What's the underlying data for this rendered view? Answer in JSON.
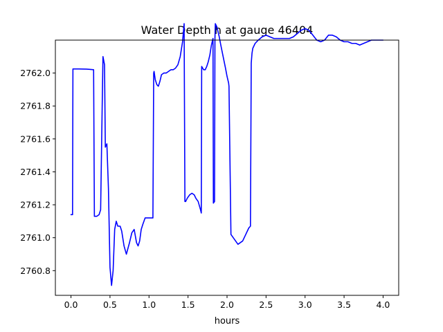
{
  "chart_data": {
    "type": "line",
    "title": "Water Depth h at gauge 46404",
    "xlabel": "hours",
    "ylabel": "",
    "xlim": [
      -0.2,
      4.2
    ],
    "ylim": [
      2760.65,
      2762.2
    ],
    "xticks": [
      0.0,
      0.5,
      1.0,
      1.5,
      2.0,
      2.5,
      3.0,
      3.5,
      4.0
    ],
    "xtick_labels": [
      "0.0",
      "0.5",
      "1.0",
      "1.5",
      "2.0",
      "2.5",
      "3.0",
      "3.5",
      "4.0"
    ],
    "yticks": [
      2760.8,
      2761.0,
      2761.2,
      2761.4,
      2761.6,
      2761.8,
      2762.0
    ],
    "ytick_labels": [
      "2760.8",
      "2761.0",
      "2761.2",
      "2761.4",
      "2761.6",
      "2761.8",
      "2762.0"
    ],
    "grid": false,
    "series": [
      {
        "name": "",
        "color": "#0000ff",
        "x": [
          0.0,
          0.02,
          0.025,
          0.1,
          0.2,
          0.29,
          0.3,
          0.33,
          0.36,
          0.38,
          0.4,
          0.41,
          0.43,
          0.44,
          0.46,
          0.48,
          0.5,
          0.52,
          0.54,
          0.56,
          0.58,
          0.6,
          0.63,
          0.65,
          0.68,
          0.71,
          0.75,
          0.78,
          0.81,
          0.84,
          0.86,
          0.88,
          0.9,
          0.92,
          0.95,
          0.98,
          1.01,
          1.05,
          1.06,
          1.065,
          1.08,
          1.1,
          1.12,
          1.14,
          1.16,
          1.19,
          1.22,
          1.25,
          1.28,
          1.31,
          1.34,
          1.37,
          1.4,
          1.43,
          1.45,
          1.46,
          1.47,
          1.49,
          1.52,
          1.55,
          1.58,
          1.6,
          1.63,
          1.66,
          1.67,
          1.675,
          1.7,
          1.72,
          1.74,
          1.76,
          1.78,
          1.8,
          1.82,
          1.825,
          1.84,
          1.845,
          1.85,
          1.87,
          1.9,
          1.92,
          1.95,
          1.98,
          2.0,
          2.02,
          2.025,
          2.05,
          2.08,
          2.11,
          2.14,
          2.17,
          2.2,
          2.22,
          2.24,
          2.26,
          2.28,
          2.3,
          2.31,
          2.32,
          2.33,
          2.36,
          2.4,
          2.45,
          2.5,
          2.55,
          2.6,
          2.65,
          2.7,
          2.75,
          2.8,
          2.85,
          2.9,
          2.95,
          3.0,
          3.05,
          3.1,
          3.15,
          3.2,
          3.25,
          3.3,
          3.35,
          3.4,
          3.45,
          3.5,
          3.55,
          3.6,
          3.65,
          3.7,
          3.75,
          3.8,
          3.85,
          3.9,
          3.95,
          4.0
        ],
        "y": [
          2761.14,
          2761.14,
          2762.025,
          2762.025,
          2762.024,
          2762.02,
          2761.13,
          2761.13,
          2761.14,
          2761.17,
          2761.8,
          2762.1,
          2762.05,
          2761.55,
          2761.57,
          2761.3,
          2760.82,
          2760.71,
          2760.8,
          2761.05,
          2761.1,
          2761.07,
          2761.07,
          2761.04,
          2760.95,
          2760.9,
          2760.97,
          2761.03,
          2761.05,
          2760.97,
          2760.95,
          2760.98,
          2761.05,
          2761.08,
          2761.12,
          2761.12,
          2761.12,
          2761.12,
          2762.0,
          2762.01,
          2761.96,
          2761.93,
          2761.92,
          2761.95,
          2761.99,
          2762.0,
          2762.0,
          2762.01,
          2762.02,
          2762.02,
          2762.03,
          2762.05,
          2762.1,
          2762.19,
          2762.3,
          2761.22,
          2761.22,
          2761.24,
          2761.26,
          2761.27,
          2761.26,
          2761.24,
          2761.22,
          2761.17,
          2761.15,
          2762.04,
          2762.02,
          2762.02,
          2762.04,
          2762.07,
          2762.11,
          2762.17,
          2762.21,
          2761.21,
          2761.22,
          2762.21,
          2762.3,
          2762.28,
          2762.22,
          2762.17,
          2762.1,
          2762.03,
          2761.98,
          2761.94,
          2761.92,
          2761.02,
          2761.0,
          2760.98,
          2760.96,
          2760.97,
          2760.98,
          2761.0,
          2761.02,
          2761.04,
          2761.06,
          2761.07,
          2762.06,
          2762.12,
          2762.15,
          2762.18,
          2762.2,
          2762.22,
          2762.23,
          2762.22,
          2762.21,
          2762.21,
          2762.21,
          2762.21,
          2762.21,
          2762.22,
          2762.24,
          2762.26,
          2762.27,
          2762.26,
          2762.23,
          2762.2,
          2762.19,
          2762.2,
          2762.23,
          2762.23,
          2762.22,
          2762.2,
          2762.19,
          2762.19,
          2762.18,
          2762.18,
          2762.17,
          2762.18,
          2762.19,
          2762.2,
          2762.2,
          2762.2,
          2762.2
        ]
      }
    ]
  }
}
